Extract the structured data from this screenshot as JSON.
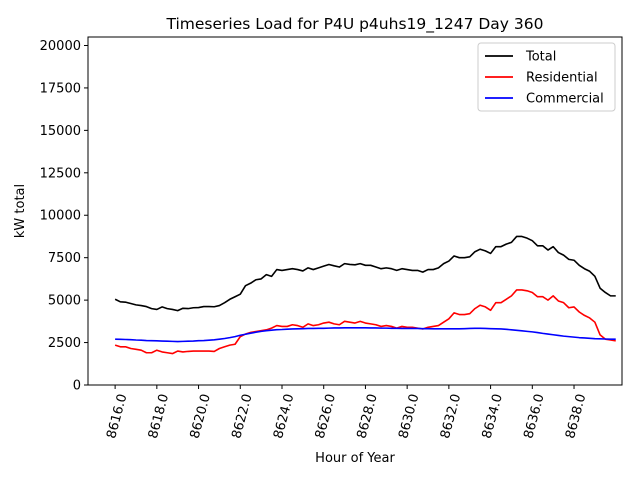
{
  "chart_data": {
    "type": "line",
    "title": "Timeseries Load for P4U p4uhs19_1247  Day 360",
    "xlabel": "Hour of Year",
    "ylabel": "kW total",
    "xlim": [
      8614.7,
      8640.3
    ],
    "ylim": [
      0,
      20500
    ],
    "xticks": [
      8616,
      8618,
      8620,
      8622,
      8624,
      8626,
      8628,
      8630,
      8632,
      8634,
      8636,
      8638
    ],
    "xtick_labels": [
      "8616.0",
      "8618.0",
      "8620.0",
      "8622.0",
      "8624.0",
      "8626.0",
      "8628.0",
      "8630.0",
      "8632.0",
      "8634.0",
      "8636.0",
      "8638.0"
    ],
    "yticks": [
      0,
      2500,
      5000,
      7500,
      10000,
      12500,
      15000,
      17500,
      20000
    ],
    "ytick_labels": [
      "0",
      "2500",
      "5000",
      "7500",
      "10000",
      "12500",
      "15000",
      "17500",
      "20000"
    ],
    "legend_position": "top-right",
    "x_start": 8616,
    "x_step": 0.25,
    "series": [
      {
        "name": "Total",
        "color": "#000000",
        "values": [
          5050,
          4900,
          4880,
          4800,
          4720,
          4680,
          4620,
          4500,
          4450,
          4600,
          4500,
          4450,
          4380,
          4520,
          4500,
          4550,
          4560,
          4620,
          4620,
          4610,
          4680,
          4850,
          5050,
          5200,
          5350,
          5850,
          6000,
          6200,
          6250,
          6500,
          6400,
          6800,
          6750,
          6800,
          6850,
          6800,
          6720,
          6900,
          6800,
          6900,
          7000,
          7100,
          7020,
          6950,
          7150,
          7100,
          7080,
          7150,
          7050,
          7050,
          6950,
          6850,
          6900,
          6850,
          6750,
          6850,
          6800,
          6750,
          6750,
          6650,
          6800,
          6800,
          6900,
          7150,
          7300,
          7600,
          7500,
          7500,
          7550,
          7850,
          8000,
          7900,
          7750,
          8150,
          8150,
          8300,
          8400,
          8750,
          8750,
          8650,
          8500,
          8200,
          8200,
          7950,
          8150,
          7800,
          7650,
          7400,
          7350,
          7050,
          6850,
          6700,
          6400,
          5700,
          5450,
          5250,
          5250
        ]
      },
      {
        "name": "Residential",
        "color": "#ff0000",
        "values": [
          2350,
          2250,
          2250,
          2150,
          2100,
          2050,
          1900,
          1900,
          2050,
          1950,
          1900,
          1850,
          2000,
          1950,
          1980,
          2000,
          2000,
          2000,
          2000,
          1980,
          2150,
          2250,
          2350,
          2400,
          2850,
          3000,
          3100,
          3150,
          3200,
          3250,
          3350,
          3500,
          3450,
          3450,
          3550,
          3500,
          3400,
          3600,
          3500,
          3550,
          3650,
          3700,
          3600,
          3550,
          3750,
          3700,
          3650,
          3750,
          3650,
          3600,
          3550,
          3450,
          3500,
          3450,
          3350,
          3450,
          3400,
          3400,
          3350,
          3300,
          3400,
          3450,
          3500,
          3700,
          3900,
          4250,
          4150,
          4150,
          4200,
          4500,
          4700,
          4600,
          4400,
          4850,
          4850,
          5050,
          5250,
          5600,
          5600,
          5550,
          5450,
          5200,
          5200,
          5000,
          5250,
          4950,
          4850,
          4550,
          4600,
          4300,
          4100,
          3950,
          3700,
          2950,
          2700,
          2650,
          2600
        ]
      },
      {
        "name": "Commercial",
        "color": "#0000ff",
        "values": [
          2700,
          2690,
          2680,
          2670,
          2650,
          2640,
          2620,
          2610,
          2600,
          2590,
          2580,
          2570,
          2560,
          2570,
          2580,
          2590,
          2610,
          2620,
          2640,
          2660,
          2700,
          2740,
          2790,
          2850,
          2930,
          2990,
          3050,
          3110,
          3160,
          3200,
          3230,
          3260,
          3270,
          3290,
          3300,
          3310,
          3320,
          3330,
          3330,
          3340,
          3340,
          3350,
          3360,
          3360,
          3370,
          3370,
          3370,
          3370,
          3370,
          3360,
          3360,
          3350,
          3350,
          3340,
          3340,
          3330,
          3330,
          3330,
          3330,
          3320,
          3320,
          3310,
          3310,
          3310,
          3310,
          3310,
          3310,
          3320,
          3330,
          3340,
          3340,
          3330,
          3320,
          3310,
          3300,
          3280,
          3250,
          3220,
          3190,
          3160,
          3130,
          3090,
          3040,
          3000,
          2960,
          2920,
          2880,
          2850,
          2820,
          2790,
          2770,
          2750,
          2730,
          2720,
          2710,
          2700,
          2700
        ]
      }
    ]
  }
}
